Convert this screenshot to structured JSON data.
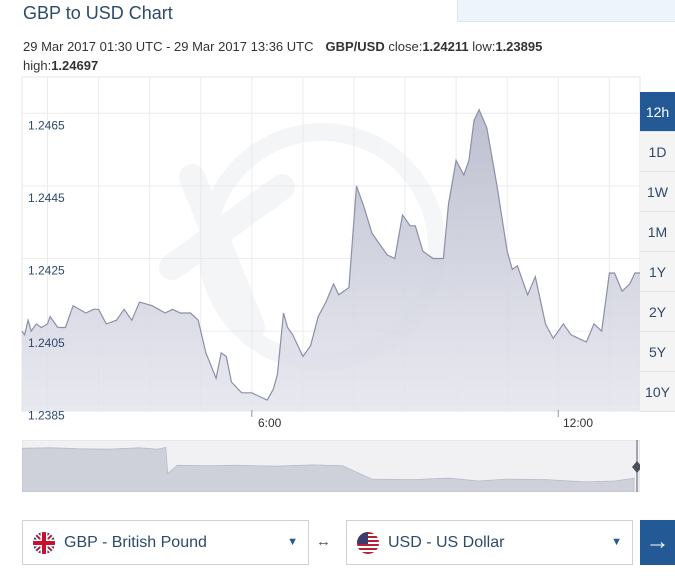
{
  "page": {
    "title": "GBP to USD Chart"
  },
  "info": {
    "range": "29 Mar 2017 01:30 UTC - 29 Mar 2017 13:36 UTC",
    "pair": "GBP/USD",
    "close_label": "close:",
    "close_value": "1.24211",
    "low_label": "low:",
    "low_value": "1.23895",
    "high_label": "high:",
    "high_value": "1.24697"
  },
  "range_buttons": [
    {
      "label": "12h",
      "active": true
    },
    {
      "label": "1D",
      "active": false
    },
    {
      "label": "1W",
      "active": false
    },
    {
      "label": "1M",
      "active": false
    },
    {
      "label": "1Y",
      "active": false
    },
    {
      "label": "2Y",
      "active": false
    },
    {
      "label": "5Y",
      "active": false
    },
    {
      "label": "10Y",
      "active": false
    }
  ],
  "converter": {
    "from": "GBP - British Pound",
    "to": "USD - US Dollar",
    "swap_symbol": "↔",
    "go_symbol": "→"
  },
  "colors": {
    "accent": "#235a96",
    "series_fill": "#c9cbd8",
    "series_line": "#8b8fa8"
  },
  "chart_data": {
    "type": "area",
    "ylim": [
      1.2383,
      1.2475
    ],
    "xlim": [
      1.5,
      13.6
    ],
    "yticks": [
      "1.2465",
      "1.2445",
      "1.2425",
      "1.2405",
      "1.2385"
    ],
    "xticks": [
      "6:00",
      "12:00"
    ],
    "xtick_values": [
      6,
      12
    ],
    "grid": true,
    "x": [
      1.5,
      1.55,
      1.62,
      1.68,
      1.78,
      1.88,
      2.0,
      2.05,
      2.2,
      2.35,
      2.5,
      2.75,
      2.9,
      3.0,
      3.15,
      3.35,
      3.5,
      3.65,
      3.8,
      4.05,
      4.3,
      4.45,
      4.6,
      4.8,
      4.95,
      5.1,
      5.3,
      5.4,
      5.5,
      5.6,
      5.8,
      6.0,
      6.15,
      6.3,
      6.42,
      6.5,
      6.62,
      6.7,
      6.8,
      7.0,
      7.15,
      7.3,
      7.45,
      7.6,
      7.7,
      7.9,
      8.05,
      8.2,
      8.35,
      8.5,
      8.65,
      8.8,
      8.95,
      9.1,
      9.2,
      9.35,
      9.55,
      9.65,
      9.75,
      9.85,
      10.0,
      10.15,
      10.25,
      10.35,
      10.45,
      10.6,
      10.8,
      11.0,
      11.1,
      11.2,
      11.4,
      11.55,
      11.75,
      11.9,
      12.1,
      12.25,
      12.4,
      12.55,
      12.7,
      12.85,
      13.0,
      13.1,
      13.25,
      13.4,
      13.5,
      13.6
    ],
    "y": [
      1.2405,
      1.2404,
      1.2408,
      1.2405,
      1.2407,
      1.2406,
      1.2407,
      1.2409,
      1.2406,
      1.2406,
      1.2412,
      1.241,
      1.2411,
      1.2411,
      1.2407,
      1.2408,
      1.2411,
      1.2408,
      1.2413,
      1.2412,
      1.241,
      1.2411,
      1.241,
      1.241,
      1.2408,
      1.2399,
      1.2392,
      1.2399,
      1.2398,
      1.2391,
      1.2388,
      1.2388,
      1.2387,
      1.2386,
      1.2389,
      1.2393,
      1.241,
      1.2406,
      1.2404,
      1.2398,
      1.2401,
      1.2409,
      1.2413,
      1.2418,
      1.2415,
      1.2417,
      1.2445,
      1.2439,
      1.2432,
      1.2429,
      1.2426,
      1.2425,
      1.2437,
      1.2434,
      1.2434,
      1.2427,
      1.2425,
      1.2425,
      1.2425,
      1.244,
      1.2452,
      1.2448,
      1.2452,
      1.2463,
      1.2466,
      1.2461,
      1.2445,
      1.2427,
      1.2422,
      1.2423,
      1.2415,
      1.242,
      1.2407,
      1.2403,
      1.2407,
      1.2404,
      1.2403,
      1.2402,
      1.2407,
      1.2405,
      1.2421,
      1.2421,
      1.2416,
      1.2418,
      1.2421,
      1.2421
    ],
    "overview": {
      "x": [
        0,
        30,
        60,
        90,
        120,
        140,
        148,
        150,
        160,
        190,
        220,
        260,
        300,
        330,
        360,
        400,
        440,
        470,
        500,
        540,
        580,
        610,
        630
      ],
      "y": [
        0.95,
        0.96,
        0.94,
        0.93,
        0.96,
        0.93,
        0.97,
        0.4,
        0.58,
        0.57,
        0.58,
        0.56,
        0.59,
        0.57,
        0.28,
        0.27,
        0.3,
        0.24,
        0.28,
        0.27,
        0.22,
        0.24,
        0.3
      ]
    }
  }
}
